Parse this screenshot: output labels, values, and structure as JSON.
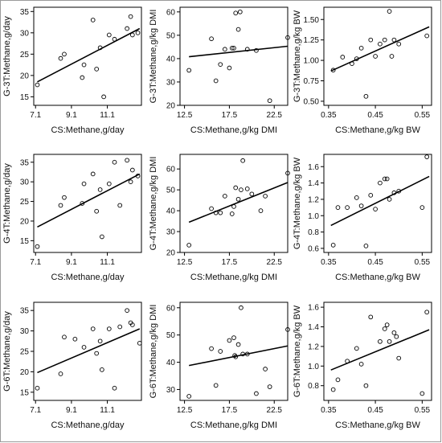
{
  "chart_data": [
    {
      "id": "p11",
      "type": "scatter",
      "xlabel": "CS:Methane,g/day",
      "ylabel": "G-3T:Methane,g/day",
      "xlim": [
        7,
        13
      ],
      "ylim": [
        13,
        36
      ],
      "xticks": [
        "7.1",
        "9.1",
        "11.1"
      ],
      "xtick_values": [
        7.1,
        9.1,
        11.1
      ],
      "yticks": [
        "15",
        "20",
        "25",
        "30",
        "35"
      ],
      "ytick_values": [
        15,
        20,
        25,
        30,
        35
      ],
      "x": [
        7.2,
        8.5,
        8.7,
        9.7,
        9.8,
        10.3,
        10.5,
        10.7,
        10.9,
        11.2,
        11.5,
        12.2,
        12.4,
        12.5,
        12.8
      ],
      "y": [
        17.8,
        24.0,
        25.0,
        19.5,
        22.5,
        33.0,
        21.5,
        26.5,
        15.0,
        29.5,
        28.5,
        31.0,
        33.8,
        29.5,
        30.0
      ],
      "fit": [
        [
          7.2,
          18.5
        ],
        [
          12.9,
          31.0
        ]
      ]
    },
    {
      "id": "p12",
      "type": "scatter",
      "xlabel": "CS:Methane,g/kg DMI",
      "ylabel": "G-3T:Methane,g/kg DMI",
      "xlim": [
        12,
        24
      ],
      "ylim": [
        20,
        62
      ],
      "xticks": [
        "12.5",
        "17.5",
        "22.5"
      ],
      "xtick_values": [
        12.5,
        17.5,
        22.5
      ],
      "yticks": [
        "20",
        "30",
        "40",
        "50",
        "60"
      ],
      "ytick_values": [
        20,
        30,
        40,
        50,
        60
      ],
      "x": [
        13.0,
        15.5,
        16.0,
        16.5,
        17.0,
        17.5,
        17.8,
        18.0,
        18.2,
        18.5,
        18.7,
        19.5,
        20.5,
        22.0,
        24.0
      ],
      "y": [
        35.0,
        48.5,
        30.5,
        37.5,
        44.0,
        36.0,
        44.5,
        44.5,
        59.5,
        52.5,
        60.0,
        44.0,
        43.5,
        22.0,
        49.0
      ],
      "fit": [
        [
          13.0,
          40.8
        ],
        [
          24.0,
          45.3
        ]
      ]
    },
    {
      "id": "p13",
      "type": "scatter",
      "xlabel": "CS:Methane,g/kg BW",
      "ylabel": "G-3T:Methane,g/kg BW",
      "xlim": [
        0.34,
        0.57
      ],
      "ylim": [
        0.45,
        1.65
      ],
      "xticks": [
        "0.35",
        "0.45",
        "0.55"
      ],
      "xtick_values": [
        0.35,
        0.45,
        0.55
      ],
      "yticks": [
        "0.50",
        "0.75",
        "1.00",
        "1.25",
        "1.50"
      ],
      "ytick_values": [
        0.5,
        0.75,
        1.0,
        1.25,
        1.5
      ],
      "x": [
        0.36,
        0.38,
        0.4,
        0.41,
        0.42,
        0.43,
        0.44,
        0.45,
        0.46,
        0.47,
        0.48,
        0.485,
        0.49,
        0.5,
        0.56
      ],
      "y": [
        0.88,
        1.04,
        0.96,
        1.02,
        1.15,
        0.56,
        1.25,
        1.05,
        1.2,
        1.25,
        1.6,
        1.05,
        1.25,
        1.2,
        1.3
      ],
      "fit": [
        [
          0.355,
          0.87
        ],
        [
          0.565,
          1.41
        ]
      ]
    },
    {
      "id": "p21",
      "type": "scatter",
      "xlabel": "CS:Methane,g/day",
      "ylabel": "G-4T:Methane,g/day",
      "xlim": [
        7,
        13
      ],
      "ylim": [
        12,
        37
      ],
      "xticks": [
        "7.1",
        "9.1",
        "11.1"
      ],
      "xtick_values": [
        7.1,
        9.1,
        11.1
      ],
      "yticks": [
        "15",
        "20",
        "25",
        "30",
        "35"
      ],
      "ytick_values": [
        15,
        20,
        25,
        30,
        35
      ],
      "x": [
        7.2,
        8.5,
        8.7,
        9.7,
        9.8,
        10.3,
        10.5,
        10.7,
        10.8,
        11.2,
        11.5,
        11.8,
        12.2,
        12.4,
        12.5,
        12.8
      ],
      "y": [
        13.5,
        24.0,
        26.0,
        24.5,
        29.5,
        32.0,
        22.5,
        28.0,
        16.0,
        29.5,
        35.0,
        24.0,
        35.5,
        30.0,
        33.0,
        31.5
      ],
      "fit": [
        [
          7.2,
          18.5
        ],
        [
          12.9,
          32.0
        ]
      ]
    },
    {
      "id": "p22",
      "type": "scatter",
      "xlabel": "CS:Methane,g/kg DMI",
      "ylabel": "G-4T:Methane,g/kg DMI",
      "xlim": [
        12,
        24
      ],
      "ylim": [
        20,
        67
      ],
      "xticks": [
        "12.5",
        "17.5",
        "22.5"
      ],
      "xtick_values": [
        12.5,
        17.5,
        22.5
      ],
      "yticks": [
        "20",
        "30",
        "40",
        "50",
        "60"
      ],
      "ytick_values": [
        20,
        30,
        40,
        50,
        60
      ],
      "x": [
        13.0,
        15.5,
        16.0,
        16.5,
        17.0,
        17.8,
        18.0,
        18.2,
        18.5,
        18.8,
        19.0,
        19.5,
        20.0,
        21.0,
        21.5,
        24.0
      ],
      "y": [
        23.5,
        41.0,
        39.0,
        39.0,
        47.0,
        38.5,
        42.0,
        51.0,
        45.5,
        50.0,
        64.0,
        50.5,
        48.0,
        40.0,
        47.0,
        58.0
      ],
      "fit": [
        [
          13.0,
          34.5
        ],
        [
          24.0,
          53.5
        ]
      ]
    },
    {
      "id": "p23",
      "type": "scatter",
      "xlabel": "CS:Methane,g/kg BW",
      "ylabel": "G-4T:Methane,g/kg BW",
      "xlim": [
        0.34,
        0.57
      ],
      "ylim": [
        0.55,
        1.75
      ],
      "xticks": [
        "0.35",
        "0.45",
        "0.55"
      ],
      "xtick_values": [
        0.35,
        0.45,
        0.55
      ],
      "yticks": [
        "0.6",
        "0.8",
        "1.0",
        "1.2",
        "1.4",
        "1.6"
      ],
      "ytick_values": [
        0.6,
        0.8,
        1.0,
        1.2,
        1.4,
        1.6
      ],
      "x": [
        0.36,
        0.37,
        0.39,
        0.41,
        0.42,
        0.43,
        0.44,
        0.45,
        0.46,
        0.47,
        0.475,
        0.48,
        0.49,
        0.5,
        0.55,
        0.56
      ],
      "y": [
        0.64,
        1.1,
        1.1,
        1.22,
        1.12,
        0.63,
        1.25,
        1.08,
        1.4,
        1.45,
        1.45,
        1.2,
        1.28,
        1.3,
        1.1,
        1.72
      ],
      "fit": [
        [
          0.355,
          0.88
        ],
        [
          0.565,
          1.48
        ]
      ]
    },
    {
      "id": "p31",
      "type": "scatter",
      "xlabel": "CS:Methane,g/day",
      "ylabel": "G-6T:Methane,g/day",
      "xlim": [
        7,
        13
      ],
      "ylim": [
        13,
        37
      ],
      "xticks": [
        "7.1",
        "9.1",
        "11.1"
      ],
      "xtick_values": [
        7.1,
        9.1,
        11.1
      ],
      "yticks": [
        "15",
        "20",
        "25",
        "30",
        "35"
      ],
      "ytick_values": [
        15,
        20,
        25,
        30,
        35
      ],
      "x": [
        7.2,
        8.5,
        8.7,
        9.3,
        9.8,
        10.3,
        10.5,
        10.7,
        10.8,
        11.2,
        11.5,
        11.8,
        12.2,
        12.4,
        12.5,
        12.9
      ],
      "y": [
        16.0,
        19.5,
        28.5,
        28.0,
        26.0,
        30.5,
        24.5,
        27.5,
        20.5,
        30.5,
        16.0,
        31.0,
        35.0,
        32.0,
        31.5,
        27.0
      ],
      "fit": [
        [
          7.2,
          19.8
        ],
        [
          12.9,
          30.5
        ]
      ]
    },
    {
      "id": "p32",
      "type": "scatter",
      "xlabel": "CS:Methane,g/kg DMI",
      "ylabel": "G-6T:Methane,g/kg DMI",
      "xlim": [
        12,
        24
      ],
      "ylim": [
        26,
        62
      ],
      "xticks": [
        "12.5",
        "17.5",
        "22.5"
      ],
      "xtick_values": [
        12.5,
        17.5,
        22.5
      ],
      "yticks": [
        "30",
        "40",
        "50",
        "60"
      ],
      "ytick_values": [
        30,
        40,
        50,
        60
      ],
      "x": [
        13.0,
        15.5,
        16.0,
        16.5,
        17.5,
        18.0,
        18.1,
        18.2,
        18.5,
        18.8,
        19.0,
        19.5,
        20.5,
        21.5,
        22.0,
        24.0
      ],
      "y": [
        27.5,
        45.0,
        31.5,
        44.0,
        48.0,
        49.0,
        42.5,
        42.0,
        46.5,
        60.0,
        43.0,
        43.0,
        28.5,
        37.5,
        31.0,
        52.0
      ],
      "fit": [
        [
          13.0,
          38.8
        ],
        [
          24.0,
          46.0
        ]
      ]
    },
    {
      "id": "p33",
      "type": "scatter",
      "xlabel": "CS:Methane,g/kg BW",
      "ylabel": "G-6T:Methane,g/kg BW",
      "xlim": [
        0.34,
        0.57
      ],
      "ylim": [
        0.65,
        1.65
      ],
      "xticks": [
        "0.35",
        "0.45",
        "0.55"
      ],
      "xtick_values": [
        0.35,
        0.45,
        0.55
      ],
      "yticks": [
        "0.8",
        "1.0",
        "1.2",
        "1.4",
        "1.6"
      ],
      "ytick_values": [
        0.8,
        1.0,
        1.2,
        1.4,
        1.6
      ],
      "x": [
        0.36,
        0.37,
        0.39,
        0.41,
        0.42,
        0.43,
        0.44,
        0.46,
        0.47,
        0.475,
        0.48,
        0.49,
        0.495,
        0.5,
        0.55,
        0.56
      ],
      "y": [
        0.76,
        0.86,
        1.05,
        1.18,
        1.02,
        0.8,
        1.5,
        1.25,
        1.38,
        1.42,
        1.25,
        1.34,
        1.3,
        1.08,
        0.72,
        1.55
      ],
      "fit": [
        [
          0.355,
          0.96
        ],
        [
          0.565,
          1.37
        ]
      ]
    }
  ]
}
